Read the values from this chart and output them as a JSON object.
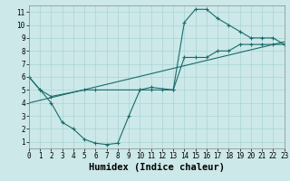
{
  "xlabel": "Humidex (Indice chaleur)",
  "xlim": [
    0,
    23
  ],
  "ylim": [
    0.5,
    11.5
  ],
  "xticks": [
    0,
    1,
    2,
    3,
    4,
    5,
    6,
    7,
    8,
    9,
    10,
    11,
    12,
    13,
    14,
    15,
    16,
    17,
    18,
    19,
    20,
    21,
    22,
    23
  ],
  "yticks": [
    1,
    2,
    3,
    4,
    5,
    6,
    7,
    8,
    9,
    10,
    11
  ],
  "bg_color": "#cce8e8",
  "line_color": "#1a6b6b",
  "line1_x": [
    0,
    1,
    2,
    5,
    6,
    10,
    11,
    13,
    14,
    15,
    16,
    17,
    18,
    19,
    20,
    21,
    22,
    23
  ],
  "line1_y": [
    6.0,
    5.0,
    4.5,
    5.0,
    5.0,
    5.0,
    5.2,
    5.0,
    10.2,
    11.2,
    11.2,
    10.5,
    10.0,
    9.5,
    9.0,
    9.0,
    9.0,
    8.5
  ],
  "line2_x": [
    0,
    1,
    2,
    3,
    4,
    5,
    6,
    7,
    8,
    9,
    10,
    11,
    12,
    13,
    14,
    15,
    16,
    17,
    18,
    19,
    20,
    21,
    22,
    23
  ],
  "line2_y": [
    6.0,
    5.0,
    4.0,
    2.5,
    2.0,
    1.2,
    0.9,
    0.8,
    0.9,
    3.0,
    5.0,
    5.0,
    5.0,
    5.0,
    7.5,
    7.5,
    7.5,
    8.0,
    8.0,
    8.5,
    8.5,
    8.5,
    8.5,
    8.5
  ],
  "line3_x": [
    0,
    23
  ],
  "line3_y": [
    4.0,
    8.7
  ],
  "grid_color": "#aad4d4",
  "tick_fontsize": 5.5,
  "xlabel_fontsize": 7.5
}
